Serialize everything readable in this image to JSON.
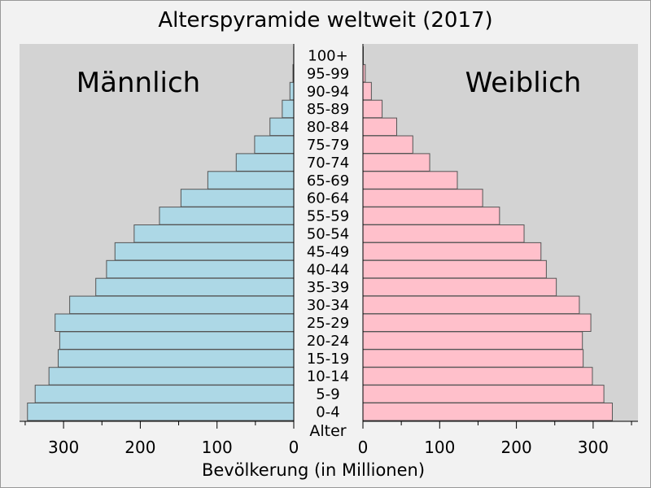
{
  "chart_data": {
    "type": "bar",
    "title": "Alterspyramide weltweit (2017)",
    "xlabel": "Bevölkerung (in Millionen)",
    "ylabel": "Alter",
    "left_label": "Männlich",
    "right_label": "Weiblich",
    "categories": [
      "0-4",
      "5-9",
      "10-14",
      "15-19",
      "20-24",
      "25-29",
      "30-34",
      "35-39",
      "40-44",
      "45-49",
      "50-54",
      "55-59",
      "60-64",
      "65-69",
      "70-74",
      "75-79",
      "80-84",
      "85-89",
      "90-94",
      "95-99",
      "100+"
    ],
    "series": [
      {
        "name": "Männlich",
        "values": [
          347,
          337,
          319,
          307,
          305,
          311,
          292,
          258,
          244,
          233,
          208,
          175,
          147,
          112,
          75,
          51,
          31,
          15,
          5,
          1,
          0.1
        ]
      },
      {
        "name": "Weiblich",
        "values": [
          325,
          314,
          299,
          287,
          286,
          297,
          282,
          252,
          239,
          232,
          210,
          178,
          156,
          123,
          87,
          65,
          44,
          25,
          11,
          3,
          0.5
        ]
      }
    ],
    "xlim": [
      0,
      350
    ],
    "xticks": [
      0,
      100,
      200,
      300
    ],
    "colors": {
      "male": "#add8e6",
      "female": "#ffc0cb",
      "panel": "#d3d3d3",
      "background": "#f2f2f2"
    },
    "grid": false
  }
}
